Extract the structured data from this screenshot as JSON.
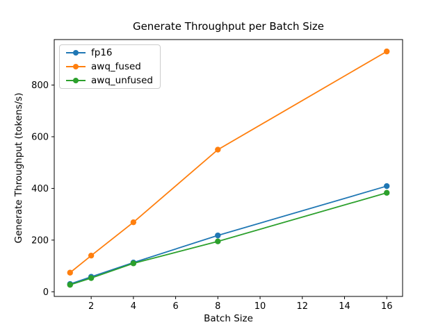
{
  "chart_data": {
    "type": "line",
    "title": "Generate Throughput per Batch Size",
    "xlabel": "Batch Size",
    "ylabel": "Generate Throughput (tokens/s)",
    "x": [
      1,
      2,
      4,
      8,
      16
    ],
    "series": [
      {
        "name": "fp16",
        "color": "#1f77b4",
        "values": [
          30,
          58,
          113,
          218,
          409
        ]
      },
      {
        "name": "awq_fused",
        "color": "#ff7f0e",
        "values": [
          74,
          140,
          269,
          550,
          930
        ]
      },
      {
        "name": "awq_unfused",
        "color": "#2ca02c",
        "values": [
          27,
          53,
          110,
          195,
          383
        ]
      }
    ],
    "xticks": [
      2,
      4,
      6,
      8,
      10,
      12,
      14,
      16
    ],
    "yticks": [
      0,
      200,
      400,
      600,
      800
    ],
    "xlim": [
      0.25,
      16.75
    ],
    "ylim": [
      -18,
      976
    ],
    "legend_position": "upper left",
    "grid": false,
    "marker": "o",
    "line_color_axes": "#000000",
    "background": "#ffffff"
  }
}
